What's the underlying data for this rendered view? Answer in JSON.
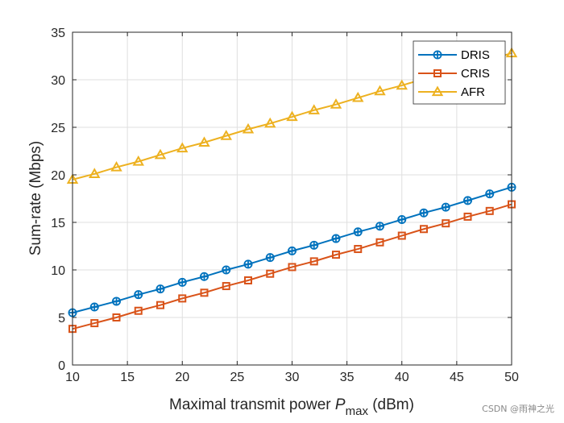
{
  "chart_data": {
    "type": "line",
    "xlabel_main": "Maximal transmit power  ",
    "xlabel_var": "P",
    "xlabel_sub": "max",
    "xlabel_unit": " (dBm)",
    "ylabel": "Sum-rate (Mbps)",
    "xlim": [
      10,
      50
    ],
    "ylim": [
      0,
      35
    ],
    "x_ticks": [
      "10",
      "15",
      "20",
      "25",
      "30",
      "35",
      "40",
      "45",
      "50"
    ],
    "y_ticks": [
      "0",
      "5",
      "10",
      "15",
      "20",
      "25",
      "30",
      "35"
    ],
    "grid": true,
    "legend_position": "top-right",
    "x": [
      10,
      12,
      14,
      16,
      18,
      20,
      22,
      24,
      26,
      28,
      30,
      32,
      34,
      36,
      38,
      40,
      42,
      44,
      46,
      48,
      50
    ],
    "series": [
      {
        "name": "DRIS",
        "color": "#0072BD",
        "marker": "circle-plus",
        "values": [
          5.5,
          6.1,
          6.7,
          7.4,
          8.0,
          8.7,
          9.3,
          10.0,
          10.6,
          11.3,
          12.0,
          12.6,
          13.3,
          14.0,
          14.6,
          15.3,
          16.0,
          16.6,
          17.3,
          18.0,
          18.7
        ]
      },
      {
        "name": "CRIS",
        "color": "#D95319",
        "marker": "square",
        "values": [
          3.8,
          4.4,
          5.0,
          5.7,
          6.3,
          7.0,
          7.6,
          8.3,
          8.9,
          9.6,
          10.3,
          10.9,
          11.6,
          12.2,
          12.9,
          13.6,
          14.3,
          14.9,
          15.6,
          16.2,
          16.9
        ]
      },
      {
        "name": "AFR",
        "color": "#EDB120",
        "marker": "triangle",
        "values": [
          19.5,
          20.1,
          20.8,
          21.4,
          22.1,
          22.8,
          23.4,
          24.1,
          24.8,
          25.4,
          26.1,
          26.8,
          27.4,
          28.1,
          28.8,
          29.4,
          30.1,
          30.8,
          31.5,
          32.1,
          32.8
        ]
      }
    ]
  },
  "watermark": "CSDN @雨神之光"
}
